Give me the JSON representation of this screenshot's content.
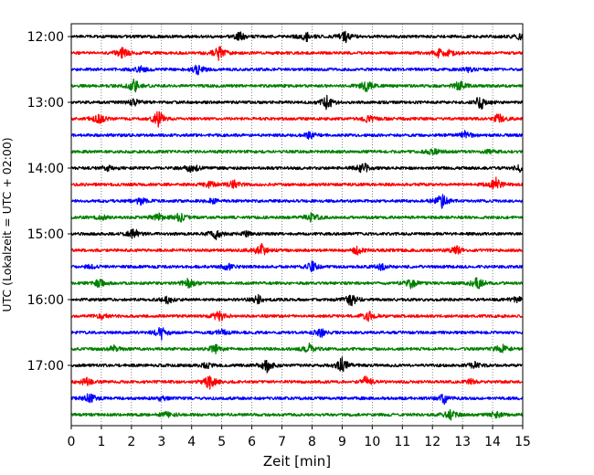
{
  "chart_data": {
    "type": "line",
    "title": "",
    "xlabel": "Zeit  [min]",
    "ylabel": "UTC (Lokalzeit = UTC + 02:00)",
    "xlim": [
      0,
      15
    ],
    "x_ticks": [
      "0",
      "1",
      "2",
      "3",
      "4",
      "5",
      "6",
      "7",
      "8",
      "9",
      "10",
      "11",
      "12",
      "13",
      "14",
      "15"
    ],
    "y_ticks": [
      "12:00",
      "13:00",
      "14:00",
      "15:00",
      "16:00",
      "17:00"
    ],
    "grid": "vertical dotted at each minute",
    "trace_interval_min": 15,
    "first_trace": "12:00",
    "colors": [
      "#000000",
      "#ff0000",
      "#0000ff",
      "#008000"
    ],
    "traces": [
      {
        "start": "12:00",
        "color": "#000000",
        "events": [
          [
            5.6,
            0.5
          ],
          [
            7.8,
            0.6
          ],
          [
            9.1,
            0.7
          ],
          [
            14.9,
            0.4
          ]
        ]
      },
      {
        "start": "12:15",
        "color": "#ff0000",
        "events": [
          [
            1.7,
            0.6
          ],
          [
            4.9,
            0.9
          ],
          [
            12.2,
            0.5
          ],
          [
            12.6,
            0.4
          ]
        ]
      },
      {
        "start": "12:30",
        "color": "#0000ff",
        "events": [
          [
            2.3,
            0.5
          ],
          [
            4.2,
            0.6
          ],
          [
            13.2,
            0.3
          ]
        ]
      },
      {
        "start": "12:45",
        "color": "#008000",
        "events": [
          [
            2.1,
            0.8
          ],
          [
            9.8,
            0.7
          ],
          [
            12.9,
            0.6
          ]
        ]
      },
      {
        "start": "13:00",
        "color": "#000000",
        "events": [
          [
            2.1,
            0.4
          ],
          [
            8.5,
            0.9
          ],
          [
            13.6,
            0.9
          ]
        ]
      },
      {
        "start": "13:15",
        "color": "#ff0000",
        "events": [
          [
            0.9,
            0.7
          ],
          [
            2.9,
            1.0
          ],
          [
            9.9,
            0.5
          ],
          [
            14.2,
            0.6
          ]
        ]
      },
      {
        "start": "13:30",
        "color": "#0000ff",
        "events": [
          [
            7.9,
            0.4
          ],
          [
            13.1,
            0.5
          ]
        ]
      },
      {
        "start": "13:45",
        "color": "#008000",
        "events": [
          [
            12.0,
            0.4
          ],
          [
            13.9,
            0.3
          ]
        ]
      },
      {
        "start": "14:00",
        "color": "#000000",
        "events": [
          [
            1.2,
            0.4
          ],
          [
            4.0,
            0.6
          ],
          [
            9.7,
            0.7
          ],
          [
            14.9,
            0.4
          ]
        ]
      },
      {
        "start": "14:15",
        "color": "#ff0000",
        "events": [
          [
            4.6,
            0.4
          ],
          [
            5.4,
            0.5
          ],
          [
            14.1,
            0.8
          ]
        ]
      },
      {
        "start": "14:30",
        "color": "#0000ff",
        "events": [
          [
            2.3,
            0.5
          ],
          [
            4.7,
            0.3
          ],
          [
            12.3,
            0.9
          ]
        ]
      },
      {
        "start": "14:45",
        "color": "#008000",
        "events": [
          [
            1.0,
            0.3
          ],
          [
            2.9,
            0.5
          ],
          [
            3.6,
            0.6
          ],
          [
            8.0,
            0.7
          ]
        ]
      },
      {
        "start": "15:00",
        "color": "#000000",
        "events": [
          [
            2.1,
            0.7
          ],
          [
            4.8,
            0.6
          ],
          [
            5.8,
            0.3
          ]
        ]
      },
      {
        "start": "15:15",
        "color": "#ff0000",
        "events": [
          [
            6.3,
            0.9
          ],
          [
            9.5,
            0.5
          ],
          [
            12.8,
            0.5
          ]
        ]
      },
      {
        "start": "15:30",
        "color": "#0000ff",
        "events": [
          [
            0.7,
            0.3
          ],
          [
            5.2,
            0.4
          ],
          [
            8.0,
            0.6
          ],
          [
            10.3,
            0.4
          ]
        ]
      },
      {
        "start": "15:45",
        "color": "#008000",
        "events": [
          [
            0.9,
            0.6
          ],
          [
            3.9,
            0.6
          ],
          [
            11.3,
            0.6
          ],
          [
            13.5,
            0.8
          ]
        ]
      },
      {
        "start": "16:00",
        "color": "#000000",
        "events": [
          [
            3.2,
            0.5
          ],
          [
            6.2,
            0.5
          ],
          [
            9.3,
            0.8
          ],
          [
            14.8,
            0.4
          ]
        ]
      },
      {
        "start": "16:15",
        "color": "#ff0000",
        "events": [
          [
            1.0,
            0.3
          ],
          [
            4.9,
            0.8
          ],
          [
            9.9,
            0.7
          ]
        ]
      },
      {
        "start": "16:30",
        "color": "#0000ff",
        "events": [
          [
            3.0,
            0.8
          ],
          [
            5.0,
            0.4
          ],
          [
            8.3,
            0.5
          ]
        ]
      },
      {
        "start": "16:45",
        "color": "#008000",
        "events": [
          [
            1.4,
            0.4
          ],
          [
            4.8,
            0.6
          ],
          [
            7.9,
            0.6
          ],
          [
            14.3,
            0.6
          ]
        ]
      },
      {
        "start": "17:00",
        "color": "#000000",
        "events": [
          [
            4.5,
            0.3
          ],
          [
            6.5,
            0.8
          ],
          [
            9.0,
            1.0
          ],
          [
            13.4,
            0.4
          ]
        ]
      },
      {
        "start": "17:15",
        "color": "#ff0000",
        "events": [
          [
            0.5,
            0.5
          ],
          [
            4.6,
            0.9
          ],
          [
            9.8,
            0.7
          ],
          [
            13.3,
            0.3
          ]
        ]
      },
      {
        "start": "17:30",
        "color": "#0000ff",
        "events": [
          [
            0.6,
            0.6
          ],
          [
            3.0,
            0.3
          ],
          [
            12.4,
            0.6
          ]
        ]
      },
      {
        "start": "17:45",
        "color": "#008000",
        "events": [
          [
            3.2,
            0.4
          ],
          [
            12.6,
            0.6
          ],
          [
            14.1,
            0.4
          ]
        ]
      }
    ]
  }
}
